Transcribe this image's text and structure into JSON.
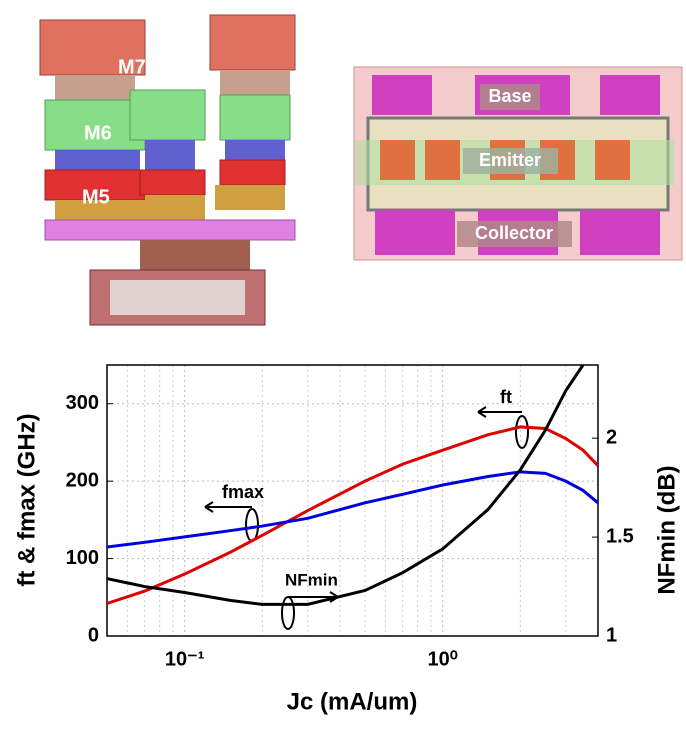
{
  "labels": {
    "metal": [
      "M7",
      "M6",
      "M5"
    ],
    "layout": [
      "Base",
      "Emitter",
      "Collector"
    ]
  },
  "chart_data": {
    "type": "line",
    "xlabel": "Jc (mA/um)",
    "ylabel": "ft & fmax (GHz)",
    "y2label": "NFmin (dB)",
    "annotations": [
      "ft",
      "fmax",
      "NFmin"
    ],
    "xscale": "log",
    "grid": true,
    "xlim": [
      0.05,
      4
    ],
    "xticks": [
      {
        "value": 0.1,
        "label": "10⁻¹"
      },
      {
        "value": 1,
        "label": "10⁰"
      }
    ],
    "ylim": [
      0,
      350
    ],
    "yticks": [
      0,
      100,
      200,
      300
    ],
    "y2lim": [
      1,
      2.37
    ],
    "y2ticks": [
      1,
      1.5,
      2
    ],
    "x": [
      0.05,
      0.07,
      0.1,
      0.15,
      0.2,
      0.3,
      0.5,
      0.7,
      1,
      1.5,
      2,
      2.5,
      3,
      3.5,
      4
    ],
    "series": [
      {
        "name": "ft",
        "color": "#e00000",
        "values": [
          42,
          58,
          80,
          108,
          130,
          162,
          200,
          222,
          240,
          260,
          270,
          268,
          255,
          240,
          220
        ]
      },
      {
        "name": "fmax",
        "color": "#0000e0",
        "values": [
          115,
          121,
          128,
          136,
          142,
          152,
          172,
          183,
          195,
          206,
          212,
          210,
          200,
          188,
          172
        ]
      },
      {
        "name": "NFmin",
        "color": "#000000",
        "axis": "y2",
        "values": [
          1.29,
          1.25,
          1.22,
          1.18,
          1.16,
          1.16,
          1.23,
          1.32,
          1.44,
          1.64,
          1.84,
          2.04,
          2.24,
          2.37,
          null
        ]
      }
    ]
  }
}
